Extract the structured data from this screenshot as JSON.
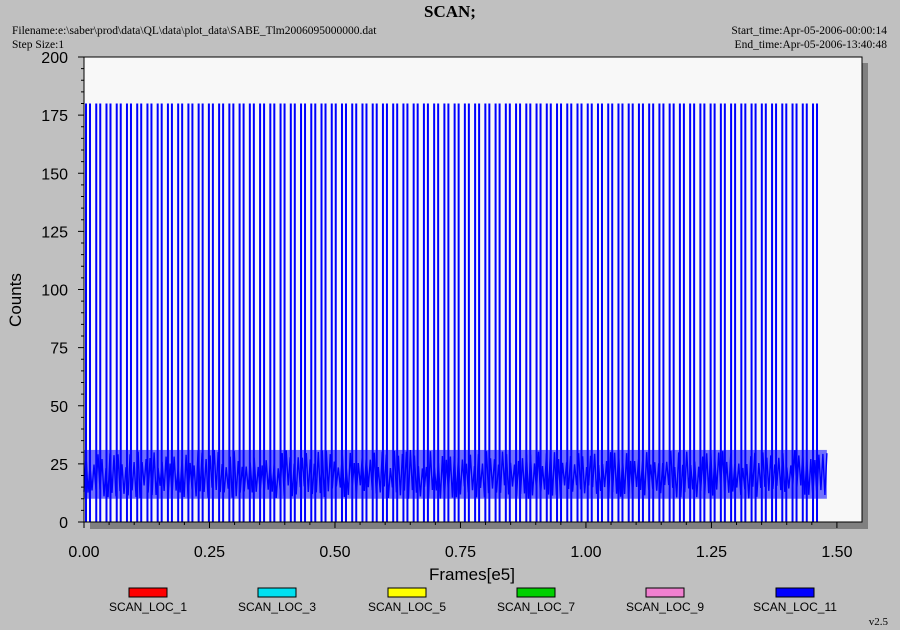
{
  "header": {
    "title": "SCAN;",
    "filename": "Filename:e:\\saber\\prod\\data\\QL\\data\\plot_data\\SABE_Tlm2006095000000.dat",
    "step_size": "Step Size:1",
    "start_time": "Start_time:Apr-05-2006-00:00:14",
    "end_time": "End_time:Apr-05-2006-13:40:48"
  },
  "version": "v2.5",
  "colors": {
    "background": "#c0c0c0",
    "plot_area": "#f8f8f8",
    "shadow": "#808080"
  },
  "chart_data": {
    "type": "line",
    "title": "SCAN;",
    "xlabel": "Frames[e5]",
    "ylabel": "Counts",
    "xlim": [
      0.0,
      1.55
    ],
    "ylim": [
      0,
      200
    ],
    "x_ticks": [
      0.0,
      0.25,
      0.5,
      0.75,
      1.0,
      1.25,
      1.5
    ],
    "x_tick_labels": [
      "0.00",
      "0.25",
      "0.50",
      "0.75",
      "1.00",
      "1.25",
      "1.50"
    ],
    "y_ticks": [
      0,
      25,
      50,
      75,
      100,
      125,
      150,
      175,
      200
    ],
    "y_tick_labels": [
      "0",
      "25",
      "50",
      "75",
      "100",
      "125",
      "150",
      "175",
      "200"
    ],
    "grid": false,
    "legend_position": "bottom",
    "data_x_end": 1.48,
    "baseline_band": [
      10,
      31
    ],
    "spike_level": 180,
    "spike_period": 0.0204,
    "spike_start": 0.004,
    "series": [
      {
        "name": "SCAN_LOC_1",
        "color": "#ff0000"
      },
      {
        "name": "SCAN_LOC_3",
        "color": "#00e0f0"
      },
      {
        "name": "SCAN_LOC_5",
        "color": "#ffff00"
      },
      {
        "name": "SCAN_LOC_7",
        "color": "#00d000"
      },
      {
        "name": "SCAN_LOC_9",
        "color": "#f080d0"
      },
      {
        "name": "SCAN_LOC_11",
        "color": "#0000ff"
      }
    ]
  }
}
